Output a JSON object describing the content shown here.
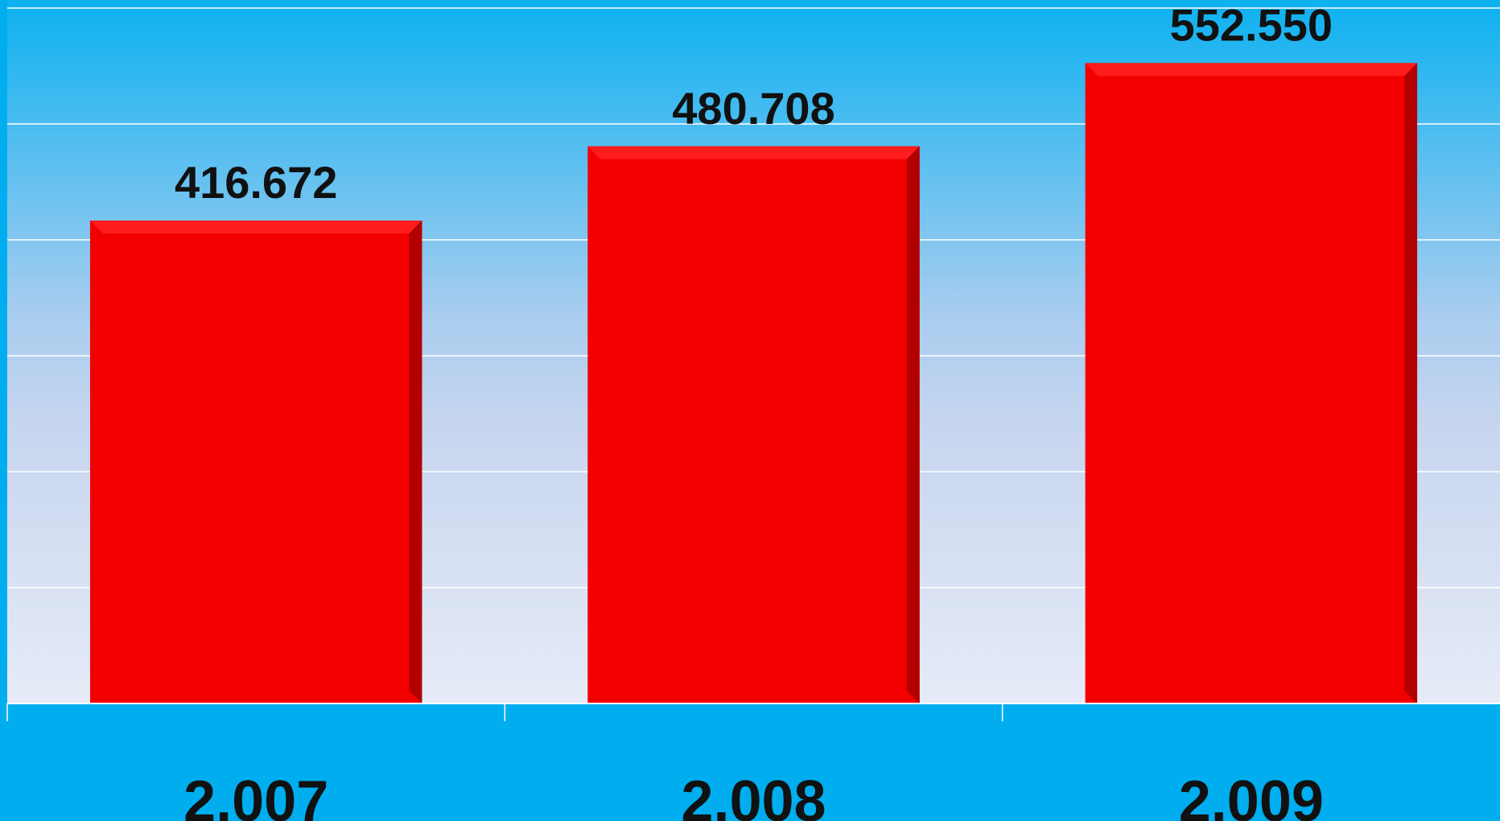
{
  "chart_data": {
    "type": "bar",
    "categories": [
      "2.007",
      "2.008",
      "2.009"
    ],
    "values": [
      416.672,
      480.708,
      552.55
    ],
    "value_labels": [
      "416.672",
      "480.708",
      "552.550"
    ],
    "ylim": [
      0,
      600
    ],
    "y_gridline_step": 100,
    "grid": true,
    "legend": "none",
    "title": "",
    "xlabel": "",
    "ylabel": "",
    "colors": {
      "background_top": "#0cb1f0",
      "background_bottom": "#e6ebf7",
      "axis_band": "#00aeef",
      "bar": "#f20000",
      "bar_top": "#ff1c1c",
      "bar_side": "#b20000",
      "gridline": "#ffffff",
      "text": "#111111"
    }
  }
}
